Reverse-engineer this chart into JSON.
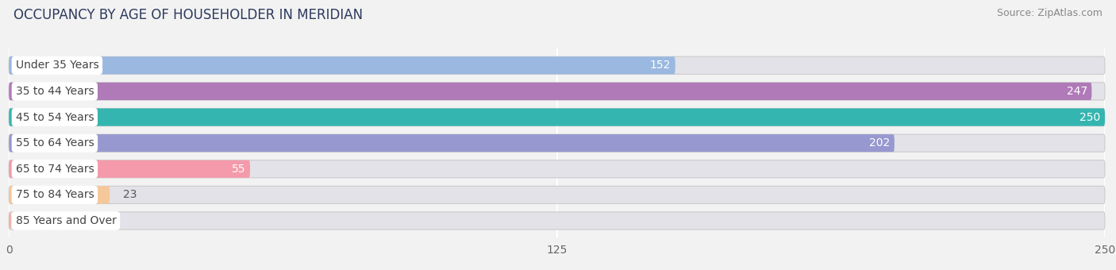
{
  "title": "OCCUPANCY BY AGE OF HOUSEHOLDER IN MERIDIAN",
  "source": "Source: ZipAtlas.com",
  "categories": [
    "Under 35 Years",
    "35 to 44 Years",
    "45 to 54 Years",
    "55 to 64 Years",
    "65 to 74 Years",
    "75 to 84 Years",
    "85 Years and Over"
  ],
  "values": [
    152,
    247,
    250,
    202,
    55,
    23,
    0
  ],
  "bar_colors": [
    "#9ab8e0",
    "#b07ab8",
    "#35b5b0",
    "#9898d0",
    "#f49aaa",
    "#f5c89a",
    "#f5b0a8"
  ],
  "max_value": 250,
  "xticks": [
    0,
    125,
    250
  ],
  "bar_height": 0.68,
  "background_color": "#f2f2f2",
  "bar_bg_color": "#e2e2e8",
  "title_fontsize": 12,
  "source_fontsize": 9,
  "tick_fontsize": 10,
  "bar_label_fontsize": 10,
  "category_fontsize": 10
}
